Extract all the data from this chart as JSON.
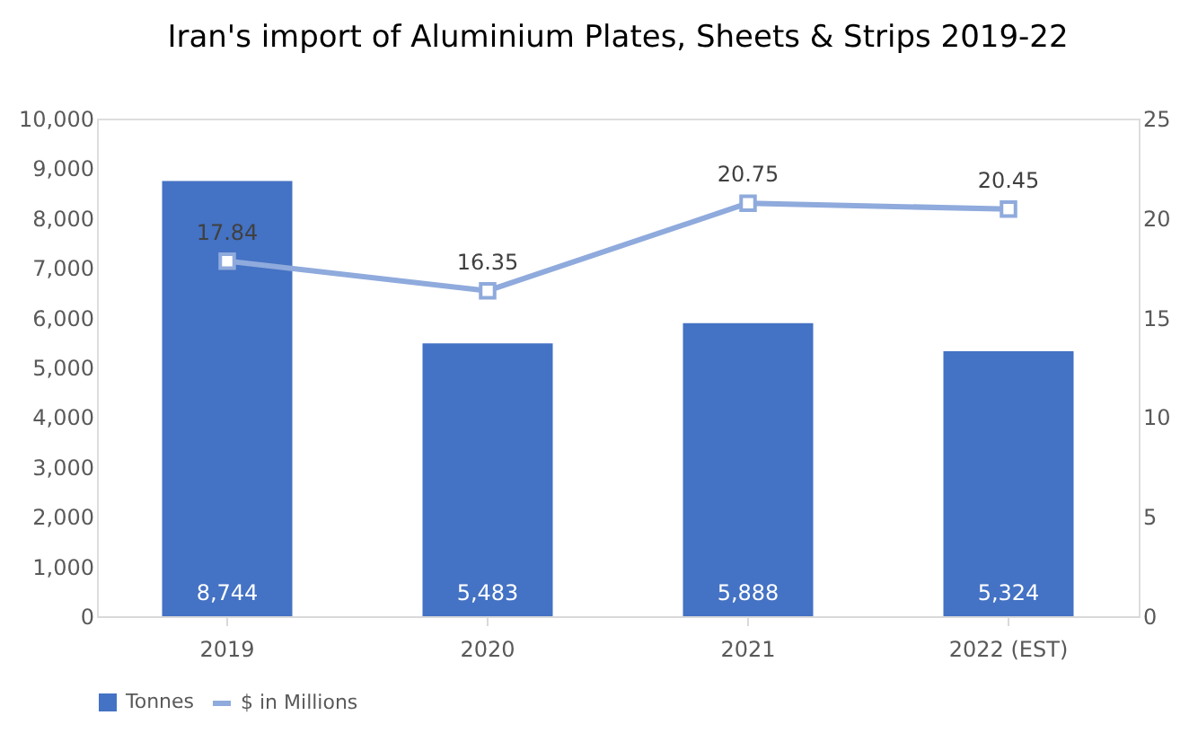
{
  "chart_data": {
    "type": "bar",
    "title": "Iran's import of Aluminium Plates, Sheets & Strips 2019-22",
    "categories": [
      "2019",
      "2020",
      "2021",
      "2022 (EST)"
    ],
    "series": [
      {
        "name": "Tonnes",
        "color": "#4472c4",
        "values": [
          8744,
          5483,
          5888,
          5324
        ],
        "value_labels": [
          "8,744",
          "5,483",
          "5,888",
          "5,324"
        ]
      },
      {
        "name": "$ in Millions",
        "type": "line",
        "axis": "y2",
        "color": "#8faadc",
        "marker": "square",
        "values": [
          17.84,
          16.35,
          20.75,
          20.45
        ],
        "value_labels": [
          "17.84",
          "16.35",
          "20.75",
          "20.45"
        ]
      }
    ],
    "ylim": [
      0,
      10000
    ],
    "yticks": [
      0,
      {
        "value": 1000,
        "label": "1,000"
      },
      {
        "value": 2000,
        "label": "2,000"
      },
      {
        "value": 3000,
        "label": "3,000"
      },
      {
        "value": 4000,
        "label": "4,000"
      },
      {
        "value": 5000,
        "label": "5,000"
      },
      {
        "value": 6000,
        "label": "6,000"
      },
      {
        "value": 7000,
        "label": "7,000"
      },
      {
        "value": 8000,
        "label": "8,000"
      },
      {
        "value": 9000,
        "label": "9,000"
      },
      {
        "value": 10000,
        "label": "10,000"
      }
    ],
    "y2lim": [
      0,
      25
    ],
    "y2ticks": [
      0,
      5,
      10,
      15,
      20,
      25
    ],
    "legend": "bottom",
    "grid": false
  }
}
